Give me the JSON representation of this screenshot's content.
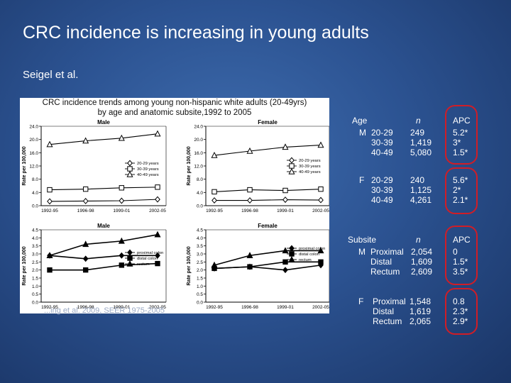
{
  "slide": {
    "title": "CRC incidence is increasing in young adults",
    "subtitle": "Seigel et al."
  },
  "figure": {
    "caption_line1": "CRC incidence trends among young non-hispanic white adults (20-49yrs)",
    "caption_line2": "by age and anatomic subsite,1992 to 2005",
    "source_overlay": "...ing et al. 2009, SEER 1975-2005"
  },
  "chart_data": [
    {
      "type": "line",
      "title": "Male",
      "ylabel": "Rate per 100,000",
      "categories": [
        "1992-95",
        "1996-98",
        "1999-01",
        "2002-05"
      ],
      "yticks": [
        "0.0",
        "4.0",
        "8.0",
        "12.0",
        "16.0",
        "20.0",
        "24.0"
      ],
      "ylim": [
        0,
        24
      ],
      "series": [
        {
          "name": "20-29 years",
          "values": [
            1.3,
            1.4,
            1.5,
            1.9
          ]
        },
        {
          "name": "30-39 years",
          "values": [
            4.8,
            5.0,
            5.4,
            5.6
          ]
        },
        {
          "name": "40-49 years",
          "values": [
            18.5,
            19.6,
            20.4,
            21.7
          ]
        }
      ]
    },
    {
      "type": "line",
      "title": "Female",
      "ylabel": "Rate per 100,000",
      "categories": [
        "1992-95",
        "1996-98",
        "1999-01",
        "2002-05"
      ],
      "yticks": [
        "0.0",
        "4.0",
        "8.0",
        "12.0",
        "16.0",
        "20.0",
        "24.0"
      ],
      "ylim": [
        0,
        24
      ],
      "series": [
        {
          "name": "20-29 years",
          "values": [
            1.6,
            1.6,
            1.8,
            1.7
          ]
        },
        {
          "name": "30-39 years",
          "values": [
            4.2,
            4.8,
            4.6,
            5.0
          ]
        },
        {
          "name": "40-49 years",
          "values": [
            15.2,
            16.5,
            17.7,
            18.3
          ]
        }
      ]
    },
    {
      "type": "line",
      "title": "Male",
      "ylabel": "Rate per 100,000",
      "categories": [
        "1992-95",
        "1996-98",
        "1999-01",
        "2002-05"
      ],
      "yticks": [
        "0.0",
        "0.5",
        "1.0",
        "1.5",
        "2.0",
        "2.5",
        "3.0",
        "3.5",
        "4.0",
        "4.5"
      ],
      "ylim": [
        0,
        4.5
      ],
      "series": [
        {
          "name": "proximal colon",
          "values": [
            2.9,
            2.7,
            2.9,
            2.9
          ]
        },
        {
          "name": "distal colon",
          "values": [
            2.0,
            2.0,
            2.3,
            2.4
          ]
        },
        {
          "name": "rectum",
          "values": [
            2.9,
            3.6,
            3.8,
            4.2
          ]
        }
      ]
    },
    {
      "type": "line",
      "title": "Female",
      "ylabel": "Rate per 100,000",
      "categories": [
        "1992-95",
        "1996-98",
        "1999-01",
        "2002-05"
      ],
      "yticks": [
        "0.0",
        "0.5",
        "1.0",
        "1.5",
        "2.0",
        "2.5",
        "3.0",
        "3.5",
        "4.0",
        "4.5"
      ],
      "ylim": [
        0,
        4.5
      ],
      "series": [
        {
          "name": "proximal colon",
          "values": [
            2.1,
            2.2,
            2.0,
            2.3
          ]
        },
        {
          "name": "distal colon",
          "values": [
            2.1,
            2.2,
            2.5,
            2.5
          ]
        },
        {
          "name": "rectum",
          "values": [
            2.3,
            2.9,
            3.2,
            3.2
          ]
        }
      ]
    }
  ],
  "age_table": {
    "age_header": "Age",
    "n_header": "n",
    "apc_header": "APC",
    "male_label": "M",
    "female_label": "F",
    "male_ages": "20-29\n30-39\n40-49",
    "male_n": "249\n1,419\n5,080",
    "male_apc": "5.2*\n3*\n1.5*",
    "female_ages": "20-29\n30-39\n40-49",
    "female_n": "240\n1,125\n4,261",
    "female_apc": "5.6*\n2*\n2.1*"
  },
  "subsite_table": {
    "subsite_header": "Subsite",
    "n_header": "n",
    "apc_header": "APC",
    "male_label": "M",
    "female_label": "F",
    "male_sites": "Proximal\nDistal\nRectum",
    "male_n": "2,054\n1,609\n2,609",
    "male_apc": "0\n1.5*\n3.5*",
    "female_sites": "Proximal\nDistal\nRectum",
    "female_n": "1,548\n1,619\n2,065",
    "female_apc": "0.8\n2.3*\n2.9*"
  },
  "colors": {
    "ring": "#d11d26"
  }
}
